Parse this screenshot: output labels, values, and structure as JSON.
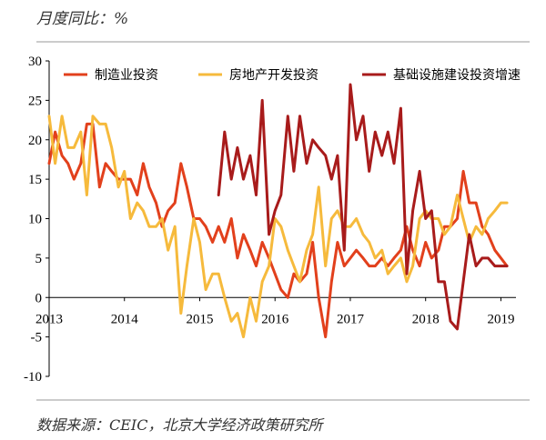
{
  "header": {
    "unit_label": "月度同比：%"
  },
  "footer": {
    "source": "数据来源：CEIC，北京大学经济政策研究所"
  },
  "chart_data": {
    "type": "line",
    "title": "",
    "xlabel": "",
    "ylabel": "",
    "ylim": [
      -10,
      30
    ],
    "yticks": [
      30,
      25,
      20,
      15,
      10,
      5,
      0,
      -5,
      -10
    ],
    "xlim": [
      2013,
      2019.2
    ],
    "xticks": [
      2013,
      2014,
      2015,
      2016,
      2017,
      2018,
      2019
    ],
    "xtick_labels": [
      "2013",
      "2014",
      "2015",
      "2016",
      "2017",
      "2018",
      "2019"
    ],
    "legend_position": "top",
    "series": [
      {
        "name": "制造业投资",
        "color": "#e2401c",
        "x": [
          2013.0,
          2013.08,
          2013.17,
          2013.25,
          2013.33,
          2013.42,
          2013.5,
          2013.58,
          2013.67,
          2013.75,
          2013.83,
          2013.92,
          2014.0,
          2014.08,
          2014.17,
          2014.25,
          2014.33,
          2014.42,
          2014.5,
          2014.58,
          2014.67,
          2014.75,
          2014.83,
          2014.92,
          2015.0,
          2015.08,
          2015.17,
          2015.25,
          2015.33,
          2015.42,
          2015.5,
          2015.58,
          2015.67,
          2015.75,
          2015.83,
          2015.92,
          2016.0,
          2016.08,
          2016.17,
          2016.25,
          2016.33,
          2016.42,
          2016.5,
          2016.58,
          2016.67,
          2016.75,
          2016.83,
          2016.92,
          2017.0,
          2017.08,
          2017.17,
          2017.25,
          2017.33,
          2017.42,
          2017.5,
          2017.58,
          2017.67,
          2017.75,
          2017.83,
          2017.92,
          2018.0,
          2018.08,
          2018.17,
          2018.25,
          2018.33,
          2018.42,
          2018.5,
          2018.58,
          2018.67,
          2018.75,
          2018.83,
          2018.92,
          2019.0,
          2019.08
        ],
        "values": [
          17,
          21,
          18,
          17,
          15,
          17,
          22,
          22,
          14,
          17,
          16,
          15,
          15,
          15,
          13,
          17,
          14,
          12,
          9,
          11,
          12,
          17,
          14,
          10,
          10,
          9,
          7,
          9,
          7,
          10,
          5,
          8,
          6,
          4,
          7,
          5,
          3,
          1,
          0,
          3,
          2,
          3,
          7,
          0,
          -5,
          2,
          7,
          4,
          5,
          6,
          5,
          4,
          4,
          5,
          4,
          5,
          6,
          9,
          6,
          4,
          7,
          5,
          6,
          9,
          9,
          10,
          16,
          12,
          12,
          9,
          8,
          6,
          5,
          4
        ]
      },
      {
        "name": "房地产开发投资",
        "color": "#f6ba3c",
        "x": [
          2013.0,
          2013.08,
          2013.17,
          2013.25,
          2013.33,
          2013.42,
          2013.5,
          2013.58,
          2013.67,
          2013.75,
          2013.83,
          2013.92,
          2014.0,
          2014.08,
          2014.17,
          2014.25,
          2014.33,
          2014.42,
          2014.5,
          2014.58,
          2014.67,
          2014.75,
          2014.83,
          2014.92,
          2015.0,
          2015.08,
          2015.17,
          2015.25,
          2015.33,
          2015.42,
          2015.5,
          2015.58,
          2015.67,
          2015.75,
          2015.83,
          2015.92,
          2016.0,
          2016.08,
          2016.17,
          2016.25,
          2016.33,
          2016.42,
          2016.5,
          2016.58,
          2016.67,
          2016.75,
          2016.83,
          2016.92,
          2017.0,
          2017.08,
          2017.17,
          2017.25,
          2017.33,
          2017.42,
          2017.5,
          2017.58,
          2017.67,
          2017.75,
          2017.83,
          2017.92,
          2018.0,
          2018.08,
          2018.17,
          2018.25,
          2018.33,
          2018.42,
          2018.5,
          2018.58,
          2018.67,
          2018.75,
          2018.83,
          2018.92,
          2019.0,
          2019.08
        ],
        "values": [
          23,
          17,
          23,
          19,
          19,
          21,
          13,
          23,
          22,
          22,
          19,
          14,
          16,
          10,
          12,
          11,
          9,
          9,
          10,
          6,
          9,
          -2,
          4,
          10,
          7,
          1,
          3,
          3,
          0,
          -3,
          -2,
          -5,
          0,
          -3,
          2,
          4,
          10,
          9,
          6,
          4,
          2,
          6,
          8,
          14,
          4,
          10,
          11,
          9,
          9,
          10,
          8,
          7,
          5,
          6,
          3,
          4,
          5,
          2,
          4,
          10,
          11,
          10,
          10,
          8,
          9,
          13,
          10,
          7,
          9,
          8,
          10,
          11,
          12,
          12
        ]
      },
      {
        "name": "基础设施建设投资增速",
        "color": "#a81b1b",
        "x": [
          2015.25,
          2015.33,
          2015.42,
          2015.5,
          2015.58,
          2015.67,
          2015.75,
          2015.83,
          2015.92,
          2016.0,
          2016.08,
          2016.17,
          2016.25,
          2016.33,
          2016.42,
          2016.5,
          2016.58,
          2016.67,
          2016.75,
          2016.83,
          2016.92,
          2017.0,
          2017.08,
          2017.17,
          2017.25,
          2017.33,
          2017.42,
          2017.5,
          2017.58,
          2017.67,
          2017.75,
          2017.83,
          2017.92,
          2018.0,
          2018.08,
          2018.17,
          2018.25,
          2018.33,
          2018.42,
          2018.5,
          2018.58,
          2018.67,
          2018.75,
          2018.83,
          2018.92,
          2019.0,
          2019.08
        ],
        "values": [
          13,
          21,
          15,
          19,
          15,
          18,
          13,
          25,
          8,
          11,
          13,
          23,
          16,
          23,
          17,
          20,
          19,
          18,
          15,
          18,
          6,
          27,
          20,
          23,
          16,
          21,
          18,
          21,
          17,
          24,
          3,
          11,
          16,
          10,
          11,
          2,
          2,
          -3,
          -4,
          2,
          8,
          4,
          5,
          5,
          4,
          4,
          4
        ]
      }
    ]
  }
}
